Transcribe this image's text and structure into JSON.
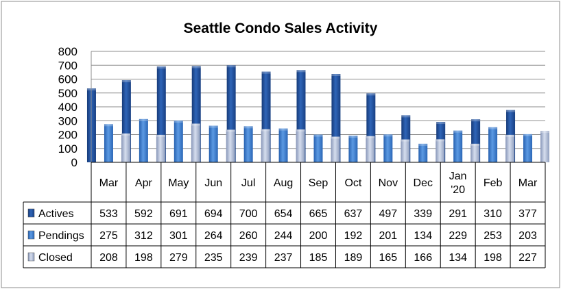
{
  "chart_data": {
    "type": "bar",
    "title": "Seattle Condo Sales Activity",
    "categories": [
      [
        "Mar"
      ],
      [
        "Apr"
      ],
      [
        "May"
      ],
      [
        "Jun"
      ],
      [
        "Jul"
      ],
      [
        "Aug"
      ],
      [
        "Sep"
      ],
      [
        "Oct"
      ],
      [
        "Nov"
      ],
      [
        "Dec"
      ],
      [
        "Jan",
        "'20"
      ],
      [
        "Feb"
      ],
      [
        "Mar"
      ]
    ],
    "series": [
      {
        "name": "Actives",
        "color": "#1f4e9c",
        "values": [
          533,
          592,
          691,
          694,
          700,
          654,
          665,
          637,
          497,
          339,
          291,
          310,
          377
        ]
      },
      {
        "name": "Pendings",
        "color": "#3a7fd0",
        "values": [
          275,
          312,
          301,
          264,
          260,
          244,
          200,
          192,
          201,
          134,
          229,
          253,
          203
        ]
      },
      {
        "name": "Closed",
        "color": "#a9b7d4",
        "values": [
          208,
          198,
          279,
          235,
          239,
          237,
          185,
          189,
          165,
          166,
          134,
          198,
          227
        ]
      }
    ],
    "ylim": [
      0,
      800
    ],
    "yticks": [
      0,
      100,
      200,
      300,
      400,
      500,
      600,
      700,
      800
    ],
    "grid": true,
    "legend": "data table"
  }
}
